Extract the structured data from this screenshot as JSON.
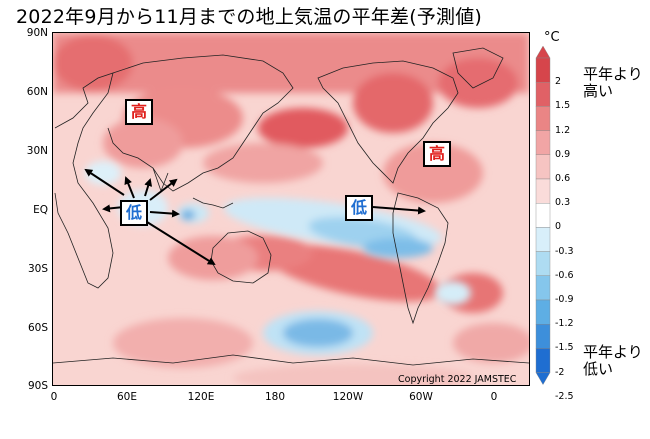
{
  "title": "2022年9月から11月までの地上気温の平年差(予測値)",
  "latitude_labels": [
    "90N",
    "60N",
    "30N",
    "EQ",
    "30S",
    "60S",
    "90S"
  ],
  "longitude_labels": [
    "0",
    "60E",
    "120E",
    "180",
    "120W",
    "60W",
    "0"
  ],
  "copyright": "Copyright 2022 JAMSTEC",
  "colorbar": {
    "unit": "°C",
    "levels": [
      "2",
      "1.5",
      "1.2",
      "0.9",
      "0.6",
      "0.3",
      "0",
      "-0.3",
      "-0.6",
      "-0.9",
      "-1.2",
      "-1.5",
      "-2",
      "-2.5"
    ],
    "colors": [
      "#d6454b",
      "#e06166",
      "#ea8585",
      "#f1a5a5",
      "#f6c4c2",
      "#fadcda",
      "#ffffff",
      "#d8effa",
      "#aedcf2",
      "#85c6ec",
      "#5eaee4",
      "#3d8fdb",
      "#1f6ed1"
    ],
    "label_above": "平年より\n高い",
    "label_below": "平年より\n低い"
  },
  "annotations": {
    "high_label": "高",
    "low_label": "低"
  },
  "colors": {
    "warm": "#e9777a",
    "cool": "#5ea7e2",
    "high_text": "#e0201c",
    "low_text": "#1f6ed1"
  }
}
